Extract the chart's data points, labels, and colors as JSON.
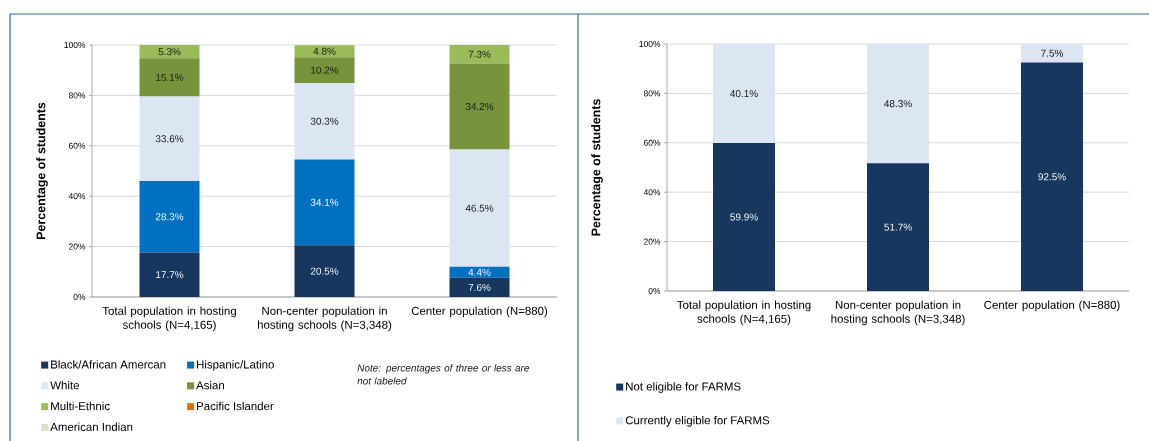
{
  "chart_data": [
    {
      "type": "bar",
      "stacked": true,
      "categories": [
        "Total population in hosting schools (N=4,165)",
        "Non-center population in hosting schools (N=3,348)",
        "Center population (N=880)"
      ],
      "series": [
        {
          "name": "Black/African Amercan",
          "color": "#17375e",
          "values": [
            17.7,
            20.5,
            7.6
          ],
          "value_labels": [
            "17.7%",
            "20.5%",
            "7.6%"
          ]
        },
        {
          "name": "Hispanic/Latino",
          "color": "#0070c0",
          "values": [
            28.3,
            34.1,
            4.4
          ],
          "value_labels": [
            "28.3%",
            "34.1%",
            "4.4%"
          ]
        },
        {
          "name": "White",
          "color": "#dce6f2",
          "values": [
            33.6,
            30.3,
            46.5
          ],
          "value_labels": [
            "33.6%",
            "30.3%",
            "46.5%"
          ]
        },
        {
          "name": "Asian",
          "color": "#77933c",
          "values": [
            15.1,
            10.2,
            34.2
          ],
          "value_labels": [
            "15.1%",
            "10.2%",
            "34.2%"
          ]
        },
        {
          "name": "Multi-Ethnic",
          "color": "#9bbb59",
          "values": [
            5.3,
            4.8,
            7.3
          ],
          "value_labels": [
            "5.3%",
            "4.8%",
            "7.3%"
          ]
        },
        {
          "name": "Pacific Islander",
          "color": "#e46c0a",
          "values": [
            null,
            null,
            null
          ],
          "value_labels": [
            null,
            null,
            null
          ]
        },
        {
          "name": "American Indian",
          "color": "#d7e4bd",
          "values": [
            null,
            null,
            null
          ],
          "value_labels": [
            null,
            null,
            null
          ]
        }
      ],
      "ylabel": "Percentage of students",
      "ylim": [
        0,
        100
      ],
      "yticks": [
        {
          "value": 0,
          "label": "0%"
        },
        {
          "value": 20,
          "label": "20%"
        },
        {
          "value": 40,
          "label": "40%"
        },
        {
          "value": 60,
          "label": "60%"
        },
        {
          "value": 80,
          "label": "80%"
        },
        {
          "value": 100,
          "label": "100%"
        }
      ],
      "grid": "y",
      "legend": "bottom",
      "annotations": [
        "Note: percentages of three or less are not labeled"
      ]
    },
    {
      "type": "bar",
      "stacked": true,
      "categories": [
        "Total population in hosting schools (N=4,165)",
        "Non-center population in hosting schools (N=3,348)",
        "Center population (N=880)"
      ],
      "series": [
        {
          "name": "Not eligible for FARMS",
          "color": "#17375e",
          "values": [
            59.9,
            51.7,
            92.5
          ],
          "value_labels": [
            "59.9%",
            "51.7%",
            "92.5%"
          ]
        },
        {
          "name": "Currently eligible for FARMS",
          "color": "#dce6f2",
          "values": [
            40.1,
            48.3,
            7.5
          ],
          "value_labels": [
            "40.1%",
            "48.3%",
            "7.5%"
          ]
        }
      ],
      "ylabel": "Percentage of students",
      "ylim": [
        0,
        100
      ],
      "yticks": [
        {
          "value": 0,
          "label": "0%"
        },
        {
          "value": 20,
          "label": "20%"
        },
        {
          "value": 40,
          "label": "40%"
        },
        {
          "value": 60,
          "label": "60%"
        },
        {
          "value": 80,
          "label": "80%"
        },
        {
          "value": 100,
          "label": "100%"
        }
      ],
      "grid": "y",
      "legend": "bottom"
    }
  ]
}
